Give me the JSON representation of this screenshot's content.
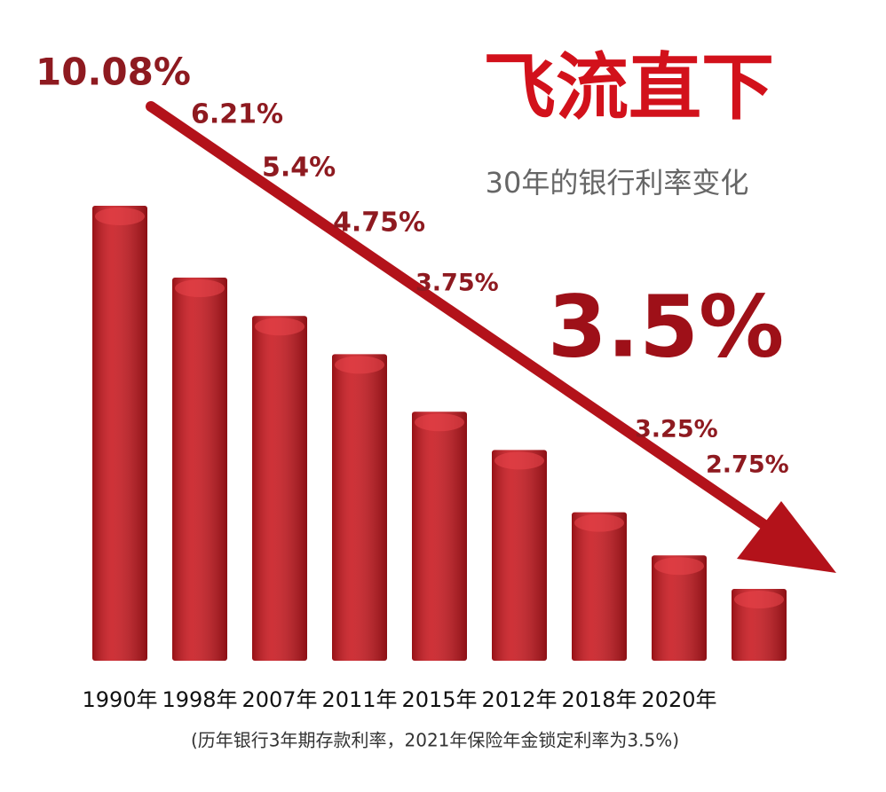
{
  "chart_data": {
    "type": "bar",
    "title": "飞流直下",
    "subtitle": "30年的银行利率变化",
    "note": "(历年银行3年期存款利率，2021年保险年金锁定利率为3.5%)",
    "highlight": "3.5%",
    "annotations": [
      "10.08%",
      "6.21%",
      "5.4%",
      "4.75%",
      "3.75%",
      "3.25%",
      "2.75%"
    ],
    "categories": [
      "1990年",
      "1998年",
      "2007年",
      "2011年",
      "2015年",
      "2012年",
      "2018年",
      "2020年",
      null
    ],
    "values": [
      95,
      80,
      72,
      64,
      52,
      44,
      31,
      22,
      15
    ],
    "color": "#c8161d",
    "ylim": [
      0,
      100
    ]
  }
}
